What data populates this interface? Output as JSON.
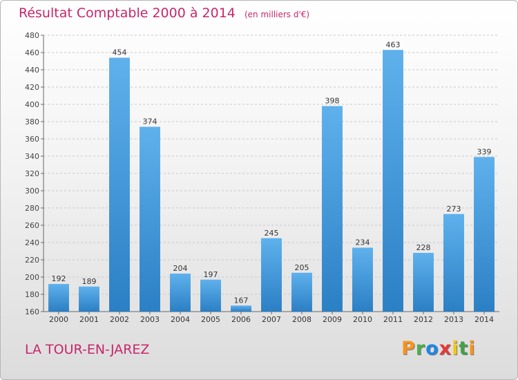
{
  "chart_data": {
    "type": "bar",
    "title": "Résultat Comptable 2000 à 2014",
    "subtitle": "(en milliers d'€)",
    "categories": [
      "2000",
      "2001",
      "2002",
      "2003",
      "2004",
      "2005",
      "2006",
      "2007",
      "2008",
      "2009",
      "2010",
      "2011",
      "2012",
      "2013",
      "2014"
    ],
    "values": [
      192,
      189,
      454,
      374,
      204,
      197,
      167,
      245,
      205,
      398,
      234,
      463,
      228,
      273,
      339
    ],
    "ylim": [
      160,
      480
    ],
    "yticks": [
      160,
      180,
      200,
      220,
      240,
      260,
      280,
      300,
      320,
      340,
      360,
      380,
      400,
      420,
      440,
      460,
      480
    ],
    "xlabel": "",
    "ylabel": "",
    "grid": true,
    "bar_color": "#3a8fd6"
  },
  "city": "LA TOUR-EN-JAREZ",
  "logo": {
    "letters": [
      "P",
      "r",
      "o",
      "x",
      "i",
      "t",
      "i"
    ],
    "colors": [
      "#f7941d",
      "#4caf50",
      "#1e88e5",
      "#e53935",
      "#f7c600",
      "#43a047",
      "#f7941d"
    ]
  }
}
